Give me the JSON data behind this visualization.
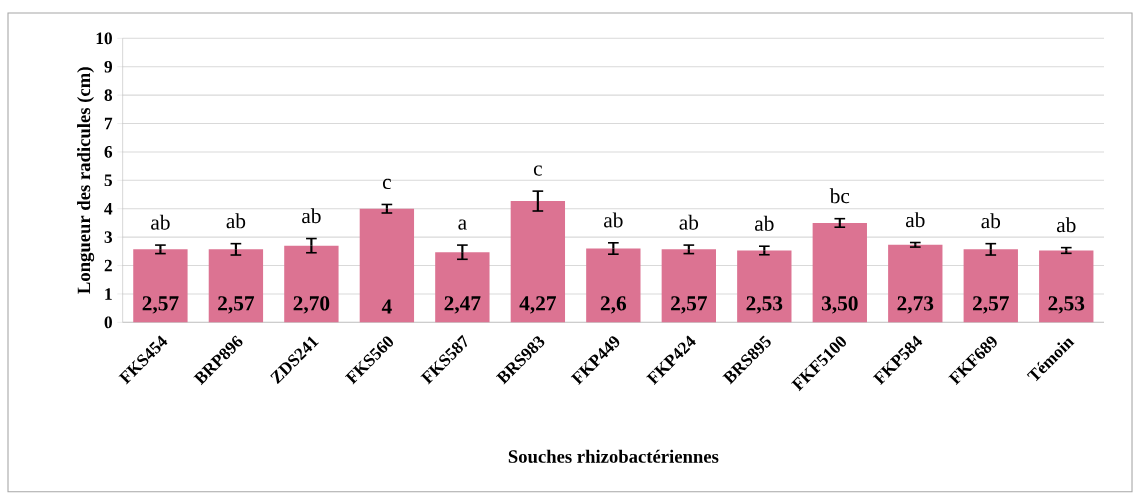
{
  "chart_data": {
    "type": "bar",
    "xlabel": "Souches rhizobactériennes",
    "ylabel": "Longueur des radicules (cm)",
    "categories": [
      "FKS454",
      "BRP896",
      "ZDS241",
      "FKS560",
      "FKS587",
      "BRS983",
      "FKP449",
      "FKP424",
      "BRS895",
      "FKF5100",
      "FKP584",
      "FKF689",
      "Témoin"
    ],
    "values": [
      2.57,
      2.57,
      2.7,
      4,
      2.47,
      4.27,
      2.6,
      2.57,
      2.53,
      3.5,
      2.73,
      2.57,
      2.53
    ],
    "value_labels": [
      "2,57",
      "2,57",
      "2,70",
      "4",
      "2,47",
      "4,27",
      "2,6",
      "2,57",
      "2,53",
      "3,50",
      "2,73",
      "2,57",
      "2,53"
    ],
    "errors": [
      0.15,
      0.2,
      0.25,
      0.15,
      0.25,
      0.35,
      0.2,
      0.15,
      0.15,
      0.15,
      0.08,
      0.2,
      0.1
    ],
    "color": "#dc7392",
    "ylim": [
      0,
      10
    ],
    "yticks": [
      0,
      1,
      2,
      3,
      4,
      5,
      6,
      7,
      8,
      9,
      10
    ],
    "grid": "y",
    "annotations": [
      "ab",
      "ab",
      "ab",
      "c",
      "a",
      "c",
      "ab",
      "ab",
      "ab",
      "bc",
      "ab",
      "ab",
      "ab"
    ]
  }
}
